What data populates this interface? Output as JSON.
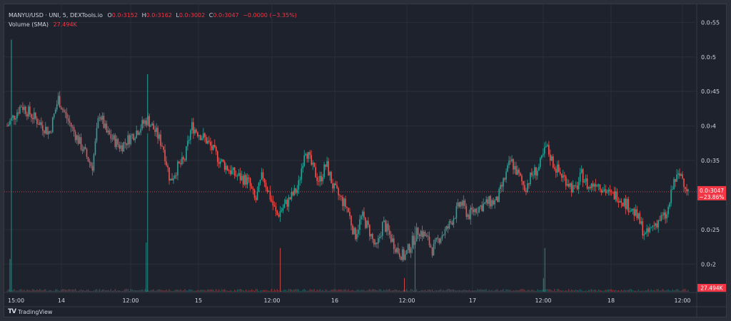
{
  "legend": {
    "symbol": "MANYU/USD · UNI, 5, DEXTools.io",
    "o_label": "O",
    "o_value": "0.0₇3152",
    "h_label": "H",
    "h_value": "0.0₇3162",
    "l_label": "L",
    "l_value": "0.0₇3002",
    "c_label": "C",
    "c_value": "0.0₇3047",
    "change": "−0.0000 (−3.35%)",
    "volume_label": "Volume (SMA)",
    "volume_value": "27.494K"
  },
  "branding": {
    "logo_icon": "tradingview-logo-icon",
    "text": "TradingView"
  },
  "colors": {
    "background": "#1e222d",
    "grid": "#2a2e39",
    "up": "#26a69a",
    "down": "#ef5350",
    "text": "#d1d4dc",
    "badge_red": "#f23645"
  },
  "chart_data": {
    "type": "candlestick",
    "title": "",
    "y_ticks": [
      "0.0₇55",
      "0.0₇5",
      "0.0₇45",
      "0.0₇4",
      "0.0₇35",
      "0.0₇25",
      "0.0₇2"
    ],
    "y_tick_values": [
      0.55,
      0.5,
      0.45,
      0.4,
      0.35,
      0.25,
      0.2
    ],
    "ylim": [
      0.16,
      0.57
    ],
    "x_ticks": [
      "15:00",
      "14",
      "12:00",
      "15",
      "12:00",
      "16",
      "12:00",
      "17",
      "12:00",
      "18",
      "12:00"
    ],
    "current_price_label": "0.0₇3047",
    "current_price_value": 0.3047,
    "current_change_label": "−23.86%",
    "volume_badge": "27.494K",
    "price_path": [
      [
        0,
        0.4
      ],
      [
        2,
        0.43
      ],
      [
        4,
        0.41
      ],
      [
        6,
        0.39
      ],
      [
        7.2,
        0.44
      ],
      [
        8,
        0.42
      ],
      [
        10,
        0.38
      ],
      [
        12,
        0.34
      ],
      [
        13,
        0.42
      ],
      [
        14,
        0.39
      ],
      [
        16,
        0.37
      ],
      [
        18,
        0.39
      ],
      [
        19.8,
        0.41
      ],
      [
        21,
        0.39
      ],
      [
        22,
        0.37
      ],
      [
        23,
        0.32
      ],
      [
        24,
        0.34
      ],
      [
        25,
        0.35
      ],
      [
        26,
        0.4
      ],
      [
        28,
        0.38
      ],
      [
        30,
        0.35
      ],
      [
        32,
        0.33
      ],
      [
        34,
        0.32
      ],
      [
        35,
        0.29
      ],
      [
        36,
        0.33
      ],
      [
        37,
        0.3
      ],
      [
        38,
        0.27
      ],
      [
        39.5,
        0.29
      ],
      [
        41,
        0.31
      ],
      [
        42,
        0.37
      ],
      [
        43,
        0.34
      ],
      [
        44,
        0.32
      ],
      [
        45,
        0.345
      ],
      [
        46,
        0.31
      ],
      [
        48,
        0.28
      ],
      [
        49,
        0.24
      ],
      [
        50,
        0.27
      ],
      [
        51,
        0.25
      ],
      [
        52,
        0.22
      ],
      [
        53,
        0.26
      ],
      [
        54,
        0.24
      ],
      [
        55,
        0.22
      ],
      [
        56,
        0.21
      ],
      [
        57,
        0.23
      ],
      [
        58,
        0.25
      ],
      [
        59,
        0.24
      ],
      [
        60,
        0.22
      ],
      [
        61,
        0.24
      ],
      [
        62,
        0.25
      ],
      [
        63,
        0.27
      ],
      [
        64,
        0.29
      ],
      [
        65,
        0.27
      ],
      [
        66,
        0.28
      ],
      [
        67,
        0.285
      ],
      [
        68,
        0.29
      ],
      [
        69,
        0.29
      ],
      [
        70,
        0.32
      ],
      [
        71,
        0.35
      ],
      [
        72,
        0.33
      ],
      [
        73,
        0.31
      ],
      [
        74,
        0.33
      ],
      [
        75,
        0.34
      ],
      [
        76,
        0.37
      ],
      [
        77,
        0.345
      ],
      [
        78,
        0.33
      ],
      [
        79,
        0.32
      ],
      [
        80,
        0.305
      ],
      [
        81,
        0.33
      ],
      [
        82,
        0.31
      ],
      [
        83,
        0.32
      ],
      [
        84,
        0.31
      ],
      [
        85,
        0.3
      ],
      [
        86,
        0.3
      ],
      [
        87,
        0.29
      ],
      [
        88,
        0.28
      ],
      [
        89,
        0.265
      ],
      [
        90,
        0.24
      ],
      [
        91,
        0.255
      ],
      [
        92,
        0.265
      ],
      [
        93,
        0.27
      ],
      [
        94,
        0.32
      ],
      [
        95,
        0.33
      ],
      [
        96,
        0.305
      ]
    ],
    "volume_spikes": [
      {
        "t": 0.6,
        "v": 0.62,
        "dir": "up"
      },
      {
        "t": 19.8,
        "v": 0.58,
        "dir": "up"
      },
      {
        "t": 19.6,
        "v": 0.18,
        "dir": "up"
      },
      {
        "t": 38.5,
        "v": 0.16,
        "dir": "down"
      },
      {
        "t": 57.5,
        "v": 0.24,
        "dir": "up"
      },
      {
        "t": 56,
        "v": 0.05,
        "dir": "down"
      },
      {
        "t": 75.8,
        "v": 0.16,
        "dir": "up"
      },
      {
        "t": 75.6,
        "v": 0.05,
        "dir": "up"
      },
      {
        "t": 0.4,
        "v": 0.12,
        "dir": "up"
      }
    ],
    "wick_spikes": [
      {
        "t": 0.6,
        "hi": 0.525
      },
      {
        "t": 19.8,
        "hi": 0.475
      }
    ]
  }
}
